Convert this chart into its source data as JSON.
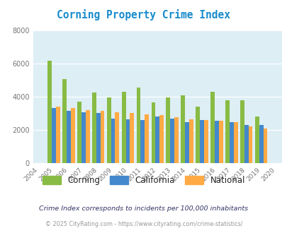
{
  "title": "Corning Property Crime Index",
  "years": [
    2004,
    2005,
    2006,
    2007,
    2008,
    2009,
    2010,
    2011,
    2012,
    2013,
    2014,
    2015,
    2016,
    2017,
    2018,
    2019,
    2020
  ],
  "corning": [
    null,
    6150,
    5050,
    3700,
    4250,
    3950,
    4300,
    4550,
    3650,
    3950,
    4100,
    3400,
    4300,
    3800,
    3800,
    2800,
    null
  ],
  "california": [
    null,
    3300,
    3150,
    3050,
    3000,
    2700,
    2650,
    2600,
    2800,
    2700,
    2450,
    2600,
    2550,
    2450,
    2300,
    2300,
    null
  ],
  "national": [
    null,
    3400,
    3300,
    3200,
    3150,
    3050,
    3000,
    2950,
    2900,
    2750,
    2650,
    2600,
    2550,
    2450,
    2200,
    2100,
    null
  ],
  "corning_color": "#88bb44",
  "california_color": "#4488cc",
  "national_color": "#ffaa44",
  "bg_color": "#ddeef5",
  "ylim": [
    0,
    8000
  ],
  "yticks": [
    0,
    2000,
    4000,
    6000,
    8000
  ],
  "subtitle": "Crime Index corresponds to incidents per 100,000 inhabitants",
  "footer": "© 2025 CityRating.com - https://www.cityrating.com/crime-statistics/",
  "legend_labels": [
    "Corning",
    "California",
    "National"
  ],
  "bar_width": 0.28
}
